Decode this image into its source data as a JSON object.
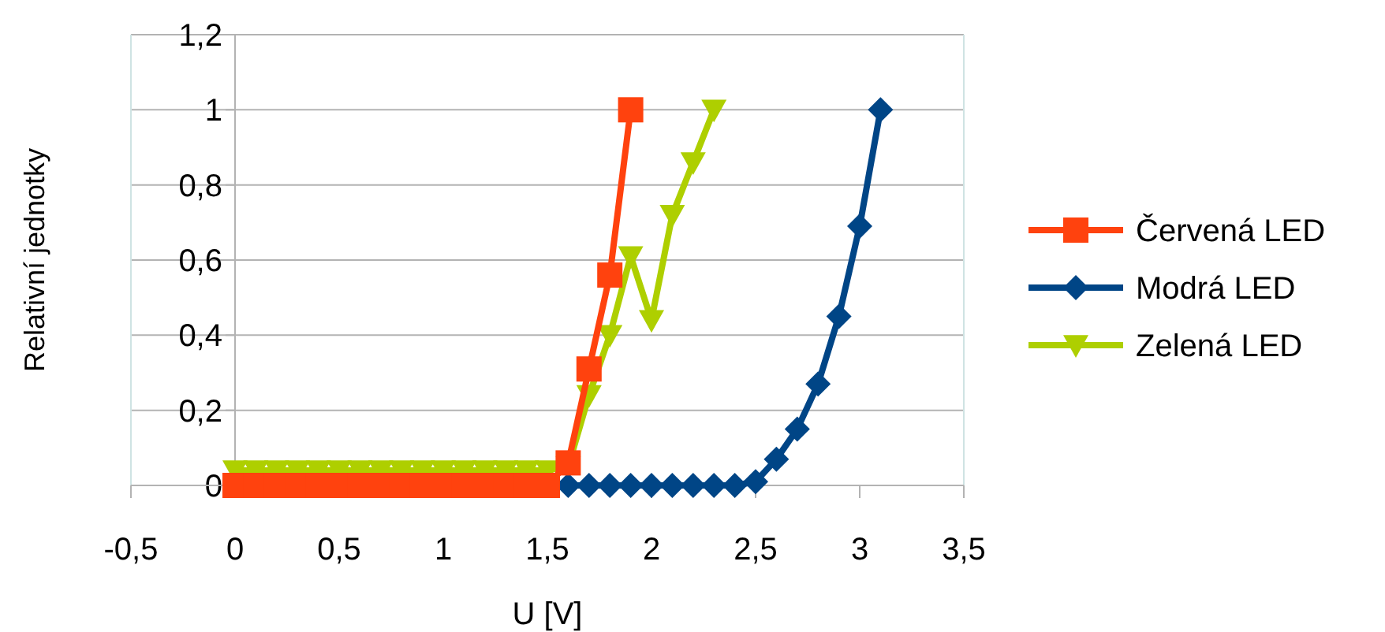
{
  "chart_data": {
    "type": "line",
    "xlabel": "U [V]",
    "ylabel": "Relativní jednotky",
    "xlim": [
      -0.5,
      3.5
    ],
    "xticks": [
      {
        "value": -0.5,
        "label": "-0,5"
      },
      0,
      {
        "value": 0.5,
        "label": "0,5"
      },
      1,
      {
        "value": 1.5,
        "label": "1,5"
      },
      2,
      {
        "value": 2.5,
        "label": "2,5"
      },
      3,
      {
        "value": 3.5,
        "label": "3,5"
      }
    ],
    "ylim": [
      0,
      1.2
    ],
    "yticks": [
      0,
      {
        "value": 0.2,
        "label": "0,2"
      },
      {
        "value": 0.4,
        "label": "0,4"
      },
      {
        "value": 0.6,
        "label": "0,6"
      },
      {
        "value": 0.8,
        "label": "0,8"
      },
      1,
      {
        "value": 1.2,
        "label": "1,2"
      }
    ],
    "grid": "y",
    "legend": "right",
    "series": [
      {
        "name": "Červená LED",
        "color": "#ff420e",
        "marker": "square",
        "x": [
          0,
          0.1,
          0.2,
          0.3,
          0.4,
          0.5,
          0.6,
          0.7,
          0.8,
          0.9,
          1,
          1.1,
          1.2,
          1.3,
          1.4,
          1.5,
          1.6,
          1.7,
          1.8,
          1.9
        ],
        "values": [
          0,
          0,
          0,
          0,
          0,
          0,
          0,
          0,
          0,
          0,
          0,
          0,
          0,
          0,
          0,
          0,
          0.06,
          0.31,
          0.56,
          1
        ]
      },
      {
        "name": "Modrá LED",
        "color": "#004586",
        "marker": "diamond",
        "x": [
          1.6,
          1.7,
          1.8,
          1.9,
          2,
          2.1,
          2.2,
          2.3,
          2.4,
          2.5,
          2.6,
          2.7,
          2.8,
          2.9,
          3,
          3.1
        ],
        "values": [
          0,
          0,
          0,
          0,
          0,
          0,
          0,
          0,
          0,
          0.01,
          0.07,
          0.15,
          0.27,
          0.45,
          0.69,
          1
        ]
      },
      {
        "name": "Zelená LED",
        "color": "#aecf00",
        "marker": "triangle",
        "x": [
          0,
          0.1,
          0.2,
          0.3,
          0.4,
          0.5,
          0.6,
          0.7,
          0.8,
          0.9,
          1,
          1.1,
          1.2,
          1.3,
          1.4,
          1.5,
          1.6,
          1.7,
          1.8,
          1.9,
          2,
          2.1,
          2.2,
          2.3
        ],
        "values": [
          0.04,
          0.04,
          0.04,
          0.04,
          0.04,
          0.04,
          0.04,
          0.04,
          0.04,
          0.04,
          0.04,
          0.04,
          0.04,
          0.04,
          0.04,
          0.04,
          0.05,
          0.24,
          0.4,
          0.61,
          0.44,
          0.72,
          0.86,
          1
        ]
      }
    ]
  }
}
